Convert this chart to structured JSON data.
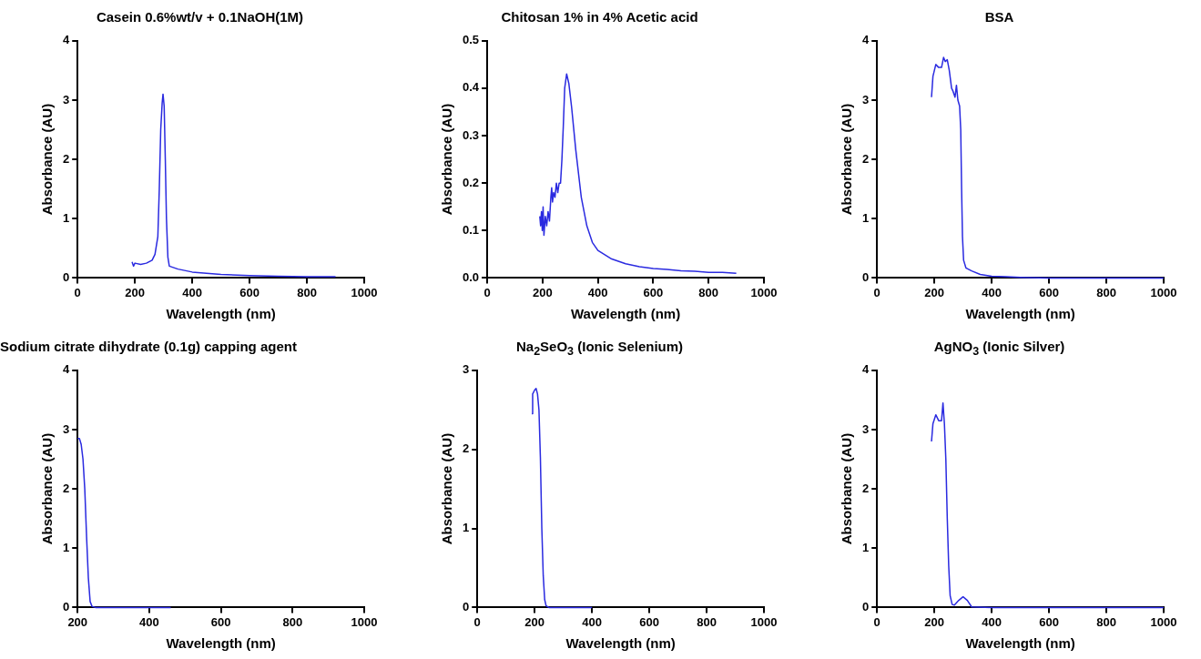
{
  "chart_data": [
    {
      "type": "line",
      "title": "Casein 0.6%wt/v + 0.1NaOH(1M)",
      "xlabel": "Wavelength (nm)",
      "ylabel": "Absorbance (AU)",
      "color": "#2a2ae0",
      "x": [
        190,
        195,
        200,
        220,
        240,
        260,
        270,
        280,
        285,
        290,
        295,
        298,
        302,
        306,
        310,
        315,
        320,
        350,
        400,
        500,
        600,
        700,
        800,
        900
      ],
      "values": [
        0.27,
        0.2,
        0.25,
        0.23,
        0.25,
        0.3,
        0.4,
        0.7,
        1.5,
        2.5,
        2.95,
        3.1,
        2.9,
        2,
        1,
        0.35,
        0.2,
        0.15,
        0.1,
        0.06,
        0.04,
        0.03,
        0.02,
        0.02
      ],
      "xlim": [
        0,
        1000
      ],
      "xticks": [
        0,
        200,
        400,
        600,
        800,
        1000
      ],
      "ylim": [
        0,
        4
      ],
      "yticks": [
        0,
        1,
        2,
        3,
        4
      ]
    },
    {
      "type": "line",
      "title": "Chitosan 1% in 4% Acetic acid",
      "xlabel": "Wavelength (nm)",
      "ylabel": "Absorbance (AU)",
      "color": "#2a2ae0",
      "x": [
        190,
        193,
        196,
        199,
        202,
        205,
        210,
        215,
        220,
        225,
        230,
        233,
        236,
        240,
        245,
        250,
        255,
        260,
        265,
        270,
        275,
        280,
        287,
        295,
        305,
        320,
        340,
        360,
        380,
        400,
        450,
        500,
        550,
        600,
        650,
        700,
        750,
        800,
        850,
        900
      ],
      "values": [
        0.13,
        0.11,
        0.14,
        0.1,
        0.15,
        0.09,
        0.13,
        0.11,
        0.14,
        0.12,
        0.17,
        0.19,
        0.16,
        0.18,
        0.17,
        0.2,
        0.18,
        0.2,
        0.2,
        0.25,
        0.32,
        0.4,
        0.43,
        0.41,
        0.36,
        0.27,
        0.17,
        0.11,
        0.075,
        0.058,
        0.04,
        0.03,
        0.024,
        0.02,
        0.018,
        0.015,
        0.014,
        0.012,
        0.012,
        0.01
      ],
      "xlim": [
        0,
        1000
      ],
      "xticks": [
        0,
        200,
        400,
        600,
        800,
        1000
      ],
      "ylim": [
        0,
        0.5
      ],
      "yticks": [
        {
          "value": 0,
          "label": "0.0"
        },
        0.1,
        0.2,
        0.3,
        0.4,
        0.5
      ]
    },
    {
      "type": "line",
      "title": "BSA",
      "xlabel": "Wavelength (nm)",
      "ylabel": "Absorbance (AU)",
      "color": "#2a2ae0",
      "x": [
        190,
        195,
        205,
        215,
        225,
        232,
        238,
        245,
        252,
        260,
        265,
        272,
        277,
        282,
        288,
        292,
        295,
        298,
        302,
        310,
        330,
        360,
        400,
        450,
        500,
        600,
        1000
      ],
      "values": [
        3.05,
        3.4,
        3.6,
        3.55,
        3.55,
        3.72,
        3.65,
        3.68,
        3.5,
        3.2,
        3.15,
        3.05,
        3.25,
        3.0,
        2.9,
        2.5,
        1.5,
        0.7,
        0.3,
        0.17,
        0.12,
        0.06,
        0.03,
        0.02,
        0.01,
        0,
        0
      ],
      "xlim": [
        0,
        1000
      ],
      "xticks": [
        0,
        200,
        400,
        600,
        800,
        1000
      ],
      "ylim": [
        0,
        4
      ],
      "yticks": [
        0,
        1,
        2,
        3,
        4
      ]
    },
    {
      "type": "line",
      "title": "Sodium citrate dihydrate (0.1g) capping agent",
      "xlabel": "Wavelength (nm)",
      "ylabel": "Absorbance (AU)",
      "color": "#2a2ae0",
      "x": [
        200,
        205,
        210,
        215,
        220,
        225,
        230,
        235,
        240,
        250,
        460
      ],
      "values": [
        2.85,
        2.85,
        2.75,
        2.5,
        2.0,
        1.2,
        0.5,
        0.1,
        0.02,
        0,
        0
      ],
      "xlim": [
        200,
        1000
      ],
      "xticks": [
        200,
        400,
        600,
        800,
        1000
      ],
      "ylim": [
        0,
        4
      ],
      "yticks": [
        0,
        1,
        2,
        3,
        4
      ]
    },
    {
      "type": "line",
      "title": "Na$_{2}$SeO$_{3}$ (Ionic Selenium)",
      "xlabel": "Wavelength (nm)",
      "ylabel": "Absorbance (AU)",
      "color": "#2a2ae0",
      "x": [
        190,
        193,
        200,
        205,
        210,
        215,
        220,
        225,
        230,
        235,
        240,
        250,
        400
      ],
      "values": [
        2.45,
        2.7,
        2.75,
        2.77,
        2.7,
        2.5,
        1.9,
        1.0,
        0.4,
        0.1,
        0.02,
        0,
        0
      ],
      "xlim": [
        0,
        1000
      ],
      "xticks": [
        0,
        200,
        400,
        600,
        800,
        1000
      ],
      "ylim": [
        0,
        3
      ],
      "yticks": [
        0,
        1,
        2,
        3
      ]
    },
    {
      "type": "line",
      "title": "AgNO$_{3}$ (Ionic Silver)",
      "xlabel": "Wavelength (nm)",
      "ylabel": "Absorbance (AU)",
      "color": "#2a2ae0",
      "x": [
        190,
        195,
        205,
        215,
        225,
        230,
        235,
        240,
        245,
        250,
        255,
        262,
        270,
        285,
        300,
        315,
        330,
        400,
        1000
      ],
      "values": [
        2.8,
        3.1,
        3.25,
        3.15,
        3.15,
        3.45,
        3.1,
        2.5,
        1.5,
        0.7,
        0.2,
        0.05,
        0.04,
        0.12,
        0.18,
        0.12,
        0.01,
        0,
        0
      ],
      "xlim": [
        0,
        1000
      ],
      "xticks": [
        0,
        200,
        400,
        600,
        800,
        1000
      ],
      "ylim": [
        0,
        4
      ],
      "yticks": [
        0,
        1,
        2,
        3,
        4
      ]
    }
  ]
}
